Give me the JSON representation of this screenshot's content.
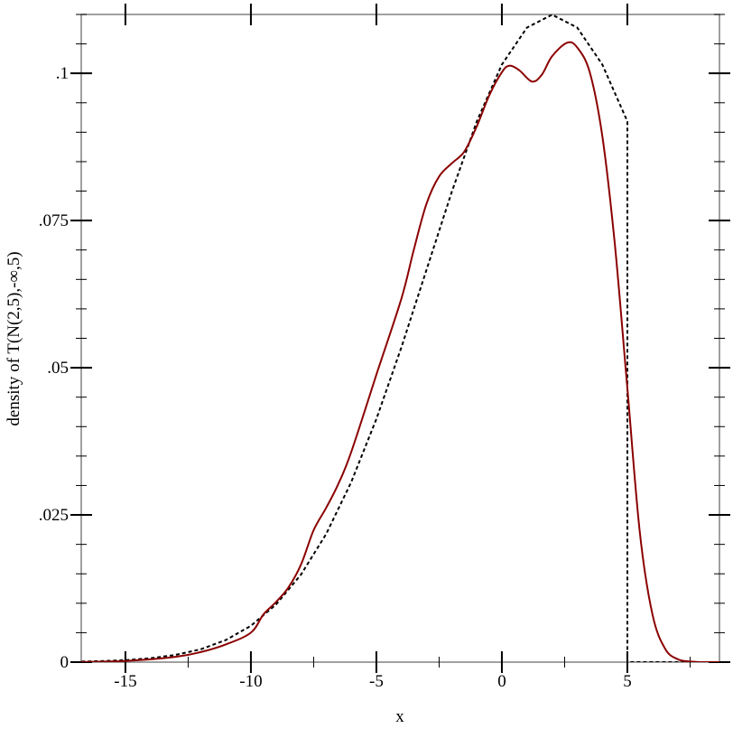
{
  "chart_data": {
    "type": "line",
    "title": "",
    "xlabel": "x",
    "ylabel": "density of T(N(2,5),-∞,5)",
    "xlim": [
      -16.76,
      8.67
    ],
    "ylim": [
      0,
      0.11
    ],
    "grid": false,
    "x_ticks": [
      {
        "v": -15,
        "label": "-15"
      },
      {
        "v": -10,
        "label": "-10"
      },
      {
        "v": -5,
        "label": "-5"
      },
      {
        "v": 0,
        "label": "0"
      },
      {
        "v": 5,
        "label": "5"
      }
    ],
    "x_minor_ticks": [
      -12.5,
      -7.5,
      -2.5,
      2.5,
      7.5
    ],
    "y_ticks": [
      {
        "v": 0,
        "label": "0"
      },
      {
        "v": 0.025,
        "label": ".025"
      },
      {
        "v": 0.05,
        "label": ".05"
      },
      {
        "v": 0.075,
        "label": ".075"
      },
      {
        "v": 0.1,
        "label": ".1"
      }
    ],
    "y_minor_step": 0.005,
    "series": [
      {
        "style": "dashed",
        "color": "#000000",
        "x": [
          -17,
          -16,
          -15,
          -14,
          -13,
          -12,
          -11,
          -10,
          -9,
          -8,
          -7,
          -6,
          -5,
          -4,
          -3,
          -2,
          -1,
          0,
          1,
          2,
          3,
          4,
          5,
          5,
          8.67
        ],
        "y": [
          8e-05,
          0.00017,
          0.00034,
          0.00066,
          0.00122,
          0.00218,
          0.00374,
          0.00617,
          0.00978,
          0.01488,
          0.02176,
          0.03057,
          0.04127,
          0.05352,
          0.06669,
          0.07984,
          0.09184,
          0.1015,
          0.10777,
          0.10995,
          0.10777,
          0.1015,
          0.09184,
          0,
          0
        ]
      },
      {
        "style": "solid",
        "color": "#8b0000",
        "x": [
          -17,
          -15,
          -13,
          -12,
          -11,
          -10,
          -9.5,
          -9,
          -8.5,
          -8,
          -7.5,
          -7,
          -6.5,
          -6,
          -5,
          -4,
          -3.5,
          -3,
          -2.5,
          -2,
          -1.5,
          -1,
          -0.5,
          0,
          0.3,
          0.7,
          1.2,
          1.6,
          2,
          2.6,
          3,
          3.5,
          4,
          4.5,
          5,
          5.5,
          6,
          6.5,
          7,
          7.5,
          8,
          8.67
        ],
        "y": [
          0,
          0.0002,
          0.0009,
          0.0017,
          0.003,
          0.005,
          0.0081,
          0.0102,
          0.0127,
          0.0166,
          0.0224,
          0.0262,
          0.0304,
          0.0357,
          0.0488,
          0.0618,
          0.0702,
          0.0779,
          0.0825,
          0.0847,
          0.0867,
          0.091,
          0.0963,
          0.1002,
          0.1013,
          0.1005,
          0.0986,
          0.0998,
          0.1029,
          0.1052,
          0.1044,
          0.1002,
          0.0894,
          0.071,
          0.0465,
          0.0219,
          0.0081,
          0.0023,
          0.0005,
          0.0001,
          0,
          0
        ]
      }
    ]
  }
}
